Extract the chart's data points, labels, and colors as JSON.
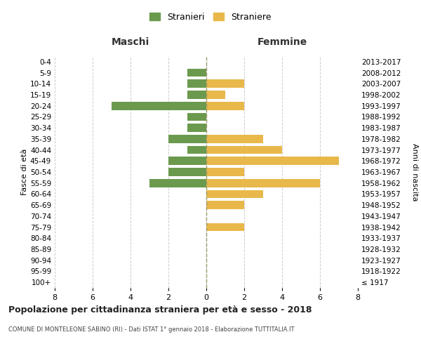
{
  "age_groups": [
    "100+",
    "95-99",
    "90-94",
    "85-89",
    "80-84",
    "75-79",
    "70-74",
    "65-69",
    "60-64",
    "55-59",
    "50-54",
    "45-49",
    "40-44",
    "35-39",
    "30-34",
    "25-29",
    "20-24",
    "15-19",
    "10-14",
    "5-9",
    "0-4"
  ],
  "birth_years": [
    "≤ 1917",
    "1918-1922",
    "1923-1927",
    "1928-1932",
    "1933-1937",
    "1938-1942",
    "1943-1947",
    "1948-1952",
    "1953-1957",
    "1958-1962",
    "1963-1967",
    "1968-1972",
    "1973-1977",
    "1978-1982",
    "1983-1987",
    "1988-1992",
    "1993-1997",
    "1998-2002",
    "2003-2007",
    "2008-2012",
    "2013-2017"
  ],
  "maschi": [
    0,
    0,
    0,
    0,
    0,
    0,
    0,
    0,
    0,
    3,
    2,
    2,
    1,
    2,
    1,
    1,
    5,
    1,
    1,
    1,
    0
  ],
  "femmine": [
    0,
    0,
    0,
    0,
    0,
    2,
    0,
    2,
    3,
    6,
    2,
    7,
    4,
    3,
    0,
    0,
    2,
    1,
    2,
    0,
    0
  ],
  "maschi_color": "#6b9a4e",
  "femmine_color": "#e8b84b",
  "xlim": 8,
  "title": "Popolazione per cittadinanza straniera per età e sesso - 2018",
  "subtitle": "COMUNE DI MONTELEONE SABINO (RI) - Dati ISTAT 1° gennaio 2018 - Elaborazione TUTTITALIA.IT",
  "legend_stranieri": "Stranieri",
  "legend_straniere": "Straniere",
  "xlabel_left": "Maschi",
  "xlabel_right": "Femmine",
  "ylabel_left": "Fasce di età",
  "ylabel_right": "Anni di nascita",
  "grid_color": "#cccccc",
  "bar_height": 0.75
}
